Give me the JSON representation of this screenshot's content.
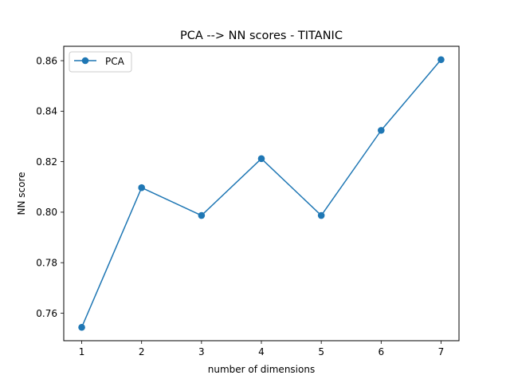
{
  "chart_data": {
    "type": "line",
    "title": "PCA --> NN scores - TITANIC",
    "xlabel": "number of dimensions",
    "ylabel": "NN score",
    "x": [
      1,
      2,
      3,
      4,
      5,
      6,
      7
    ],
    "series": [
      {
        "name": "PCA",
        "color": "#1f77b4",
        "marker": "circle",
        "values": [
          0.7544,
          0.8097,
          0.7987,
          0.8212,
          0.7987,
          0.8324,
          0.8604
        ]
      }
    ],
    "xticks": [
      "1",
      "2",
      "3",
      "4",
      "5",
      "6",
      "7"
    ],
    "yticks": [
      "0.76",
      "0.78",
      "0.80",
      "0.82",
      "0.84",
      "0.86"
    ],
    "xlim": [
      0.7,
      7.3
    ],
    "ylim": [
      0.7491,
      0.8657
    ],
    "grid": false,
    "legend": {
      "placement": "top-left",
      "entries": [
        "PCA"
      ]
    }
  }
}
